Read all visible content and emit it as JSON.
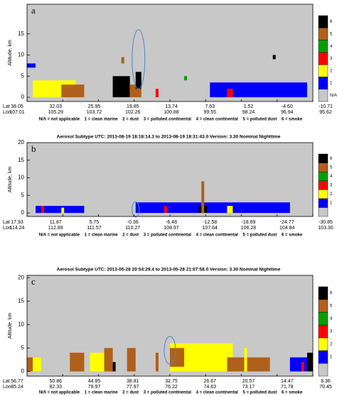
{
  "chart_data": [
    {
      "type": "heatmap",
      "label": "a",
      "ylabel": "Altitude, km",
      "ylim": [
        -1,
        22
      ],
      "yticks": [
        0,
        5,
        10,
        15
      ],
      "lat_label": "Lat",
      "lon_label": "Lon",
      "lat": [
        "38.05",
        "32.03",
        "25.95",
        "19.85",
        "13.74",
        "7.63",
        "1.52",
        "-4.60",
        "-10.71"
      ],
      "lon": [
        "107.01",
        "105.29",
        "103.72",
        "102.26",
        "100.88",
        "99.55",
        "98.24",
        "96.94",
        "95.62"
      ],
      "legend": [
        {
          "label": "N/A",
          "color": "#c8c8c8"
        },
        {
          "label": "1",
          "color": "#0000ff"
        },
        {
          "label": "2",
          "color": "#ffff00"
        },
        {
          "label": "3",
          "color": "#ff0000"
        },
        {
          "label": "4",
          "color": "#00a000"
        },
        {
          "label": "5",
          "color": "#b0601a"
        },
        {
          "label": "6",
          "color": "#000000"
        }
      ],
      "footnote": "N/A = not applicable    1 = clean marine    2 = dust    3 = polluted continental    4 = clean continental    5 = polluted dust    6 = smoke"
    },
    {
      "type": "heatmap",
      "title": "Aerosol Subtype   UTC:  2013-08-19   18:18:14.3  to  2013-08-19   18:31:43.0    Version:  3.30   Nominal Nighttime",
      "label": "b",
      "ylabel": "Altitude, km",
      "ylim": [
        -1,
        20
      ],
      "yticks": [
        0,
        5,
        10,
        15,
        20
      ],
      "lat_label": "Lat",
      "lon_label": "Lon",
      "lat": [
        "17.93",
        "11.87",
        "5.75",
        "-0.36",
        "-6.48",
        "-12.58",
        "-18.69",
        "-24.77",
        "-30.85"
      ],
      "lon": [
        "114.24",
        "112.89",
        "111.57",
        "110.27",
        "108.97",
        "107.64",
        "106.28",
        "104.84",
        "103.30"
      ],
      "legend": [
        {
          "label": null,
          "color": "#c8c8c8"
        },
        {
          "label": "1",
          "color": "#0000ff"
        },
        {
          "label": "2",
          "color": "#ffff00"
        },
        {
          "label": "3",
          "color": "#ff0000"
        },
        {
          "label": "4",
          "color": "#00a000"
        },
        {
          "label": "5",
          "color": "#b0601a"
        },
        {
          "label": "6",
          "color": "#000000"
        }
      ],
      "footnote": "N/A = not applicable    1 = clean marine    2 = dust    3 = polluted continental    4 = clean continental    5 = polluted dust    6 = smoke"
    },
    {
      "type": "heatmap",
      "title": "Aerosol Subtype   UTC:  2013-05-28   20:54:29.4  to  2013-05-28   21:07:58.0    Version:  3.30   Nominal Nighttime",
      "label": "c",
      "ylabel": "Altitude, km",
      "ylim": [
        -1,
        20.5
      ],
      "yticks": [
        0,
        5,
        10,
        15,
        20
      ],
      "lat_label": "Lat",
      "lon_label": "Lon",
      "lat": [
        "56.77",
        "50.86",
        "44.85",
        "38.81",
        "32.75",
        "26.67",
        "20.57",
        "14.47",
        "8.36"
      ],
      "lon": [
        "85.24",
        "82.33",
        "79.97",
        "77.97",
        "76.22",
        "74.63",
        "73.17",
        "71.78",
        "70.45"
      ],
      "legend": [
        {
          "label": null,
          "color": "#c8c8c8"
        },
        {
          "label": "1",
          "color": "#0000ff"
        },
        {
          "label": "2",
          "color": "#ffff00"
        },
        {
          "label": "3",
          "color": "#ff0000"
        },
        {
          "label": "4",
          "color": "#00a000"
        },
        {
          "label": "5",
          "color": "#b0601a"
        },
        {
          "label": "6",
          "color": "#000000"
        }
      ],
      "footnote": "N/A = not applicable    1 = clean marine    2 = dust    3 = polluted continental    4 = clean continental    5 = polluted dust    6 = smoke"
    }
  ]
}
